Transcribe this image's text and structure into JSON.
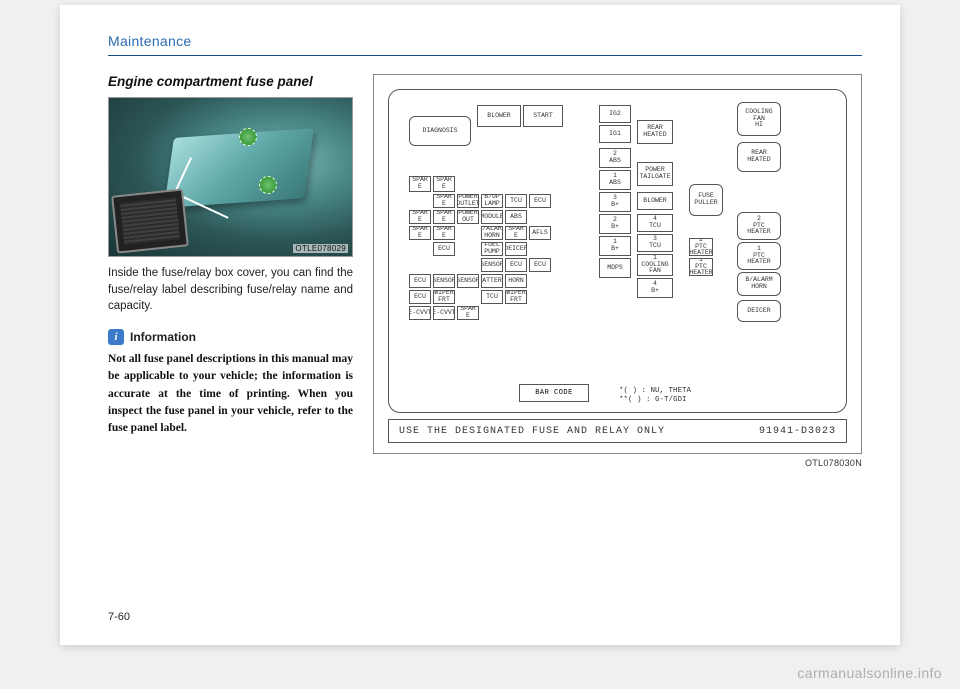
{
  "header": {
    "section": "Maintenance"
  },
  "article": {
    "title": "Engine compartment fuse panel",
    "photo_code": "OTLE078029",
    "body": "Inside the fuse/relay box cover, you can find the fuse/relay label describing fuse/relay name and capacity.",
    "info_label": "Information",
    "info_text": "Not all fuse panel descriptions in this manual may be applicable to your vehicle; the information is accurate at the time of printing. When you inspect the fuse panel in your vehicle, refer to the fuse panel label."
  },
  "diagram": {
    "code": "OTL078030N",
    "bottom_left": "USE THE DESIGNATED FUSE AND RELAY ONLY",
    "bottom_right": "91941-D3023",
    "barcode": "BAR CODE",
    "footnote1": "*( ) : NU, THETA",
    "footnote2": "**( ) : G-T/GDI",
    "cells": [
      {
        "l": 20,
        "t": 26,
        "w": 62,
        "h": 30,
        "r": 1,
        "txt": "DIAGNOSIS"
      },
      {
        "l": 88,
        "t": 15,
        "w": 44,
        "h": 22,
        "r": 0,
        "txt": "BLOWER"
      },
      {
        "l": 134,
        "t": 15,
        "w": 40,
        "h": 22,
        "r": 0,
        "txt": "START"
      },
      {
        "l": 20,
        "t": 86,
        "w": 22,
        "h": 16,
        "r": 0,
        "txt": "SPAR\nE"
      },
      {
        "l": 44,
        "t": 86,
        "w": 22,
        "h": 16,
        "r": 0,
        "txt": "SPAR\nE"
      },
      {
        "l": 44,
        "t": 104,
        "w": 22,
        "h": 14,
        "r": 0,
        "txt": "SPAR\nE"
      },
      {
        "l": 20,
        "t": 120,
        "w": 22,
        "h": 14,
        "r": 0,
        "txt": "SPAR\nE"
      },
      {
        "l": 44,
        "t": 120,
        "w": 22,
        "h": 14,
        "r": 0,
        "txt": "SPAR\nE"
      },
      {
        "l": 20,
        "t": 136,
        "w": 22,
        "h": 14,
        "r": 0,
        "txt": "SPAR\nE"
      },
      {
        "l": 44,
        "t": 136,
        "w": 22,
        "h": 14,
        "r": 0,
        "txt": "SPAR\nE"
      },
      {
        "l": 68,
        "t": 104,
        "w": 22,
        "h": 14,
        "r": 0,
        "txt": "POWER\nOUTLET"
      },
      {
        "l": 68,
        "t": 120,
        "w": 22,
        "h": 14,
        "r": 0,
        "txt": "POWER\nOUT"
      },
      {
        "l": 92,
        "t": 104,
        "w": 22,
        "h": 14,
        "r": 0,
        "txt": "B/UP\nLAMP"
      },
      {
        "l": 92,
        "t": 120,
        "w": 22,
        "h": 14,
        "r": 0,
        "txt": "MODULE"
      },
      {
        "l": 92,
        "t": 136,
        "w": 22,
        "h": 14,
        "r": 0,
        "txt": "B/ALARM\nHORN"
      },
      {
        "l": 116,
        "t": 104,
        "w": 22,
        "h": 14,
        "r": 0,
        "txt": "TCU"
      },
      {
        "l": 116,
        "t": 120,
        "w": 22,
        "h": 14,
        "r": 0,
        "txt": "ABS"
      },
      {
        "l": 116,
        "t": 136,
        "w": 22,
        "h": 14,
        "r": 0,
        "txt": "SPAR\nE"
      },
      {
        "l": 140,
        "t": 104,
        "w": 22,
        "h": 14,
        "r": 0,
        "txt": "ECU"
      },
      {
        "l": 140,
        "t": 136,
        "w": 22,
        "h": 14,
        "r": 0,
        "txt": "AFLS"
      },
      {
        "l": 44,
        "t": 152,
        "w": 22,
        "h": 14,
        "r": 0,
        "txt": "ECU"
      },
      {
        "l": 92,
        "t": 152,
        "w": 22,
        "h": 14,
        "r": 0,
        "txt": "FUEL\nPUMP"
      },
      {
        "l": 116,
        "t": 152,
        "w": 22,
        "h": 14,
        "r": 0,
        "txt": "DEICER"
      },
      {
        "l": 92,
        "t": 168,
        "w": 22,
        "h": 14,
        "r": 0,
        "txt": "SENSOR"
      },
      {
        "l": 116,
        "t": 168,
        "w": 22,
        "h": 14,
        "r": 0,
        "txt": "ECU"
      },
      {
        "l": 140,
        "t": 168,
        "w": 22,
        "h": 14,
        "r": 0,
        "txt": "ECU"
      },
      {
        "l": 20,
        "t": 184,
        "w": 22,
        "h": 14,
        "r": 0,
        "txt": "ECU"
      },
      {
        "l": 44,
        "t": 184,
        "w": 22,
        "h": 14,
        "r": 0,
        "txt": "SENSOR"
      },
      {
        "l": 68,
        "t": 184,
        "w": 22,
        "h": 14,
        "r": 0,
        "txt": "SENSOR"
      },
      {
        "l": 92,
        "t": 184,
        "w": 22,
        "h": 14,
        "r": 0,
        "txt": "BATTERY"
      },
      {
        "l": 116,
        "t": 184,
        "w": 22,
        "h": 14,
        "r": 0,
        "txt": "HORN"
      },
      {
        "l": 20,
        "t": 200,
        "w": 22,
        "h": 14,
        "r": 0,
        "txt": "ECU"
      },
      {
        "l": 44,
        "t": 200,
        "w": 22,
        "h": 14,
        "r": 0,
        "txt": "WIPER\nFRT"
      },
      {
        "l": 92,
        "t": 200,
        "w": 22,
        "h": 14,
        "r": 0,
        "txt": "TCU"
      },
      {
        "l": 116,
        "t": 200,
        "w": 22,
        "h": 14,
        "r": 0,
        "txt": "WIPER\nFRT"
      },
      {
        "l": 20,
        "t": 216,
        "w": 22,
        "h": 14,
        "r": 0,
        "txt": "E-CVVT"
      },
      {
        "l": 44,
        "t": 216,
        "w": 22,
        "h": 14,
        "r": 0,
        "txt": "E-CVVT"
      },
      {
        "l": 68,
        "t": 216,
        "w": 22,
        "h": 14,
        "r": 0,
        "txt": "SPAR\nE"
      },
      {
        "l": 210,
        "t": 15,
        "w": 32,
        "h": 18,
        "r": 0,
        "txt": "IG2"
      },
      {
        "l": 210,
        "t": 35,
        "w": 32,
        "h": 18,
        "r": 0,
        "txt": "IG1"
      },
      {
        "l": 210,
        "t": 58,
        "w": 32,
        "h": 20,
        "r": 0,
        "txt": "2\nABS"
      },
      {
        "l": 210,
        "t": 80,
        "w": 32,
        "h": 20,
        "r": 0,
        "txt": "1\nABS"
      },
      {
        "l": 210,
        "t": 102,
        "w": 32,
        "h": 20,
        "r": 0,
        "txt": "3\nB+"
      },
      {
        "l": 210,
        "t": 124,
        "w": 32,
        "h": 20,
        "r": 0,
        "txt": "2\nB+"
      },
      {
        "l": 210,
        "t": 146,
        "w": 32,
        "h": 20,
        "r": 0,
        "txt": "1\nB+"
      },
      {
        "l": 210,
        "t": 168,
        "w": 32,
        "h": 20,
        "r": 0,
        "txt": "MDPS"
      },
      {
        "l": 248,
        "t": 30,
        "w": 36,
        "h": 24,
        "r": 0,
        "txt": "REAR\nHEATED"
      },
      {
        "l": 248,
        "t": 72,
        "w": 36,
        "h": 24,
        "r": 0,
        "txt": "POWER\nTAILGATE"
      },
      {
        "l": 248,
        "t": 102,
        "w": 36,
        "h": 18,
        "r": 0,
        "txt": "BLOWER"
      },
      {
        "l": 248,
        "t": 124,
        "w": 36,
        "h": 18,
        "r": 0,
        "txt": "4\nTCU"
      },
      {
        "l": 248,
        "t": 144,
        "w": 36,
        "h": 18,
        "r": 0,
        "txt": "3\nTCU"
      },
      {
        "l": 248,
        "t": 164,
        "w": 36,
        "h": 22,
        "r": 0,
        "txt": "1\nCOOLING\nFAN"
      },
      {
        "l": 248,
        "t": 188,
        "w": 36,
        "h": 20,
        "r": 0,
        "txt": "4\nB+"
      },
      {
        "l": 300,
        "t": 94,
        "w": 34,
        "h": 32,
        "r": 1,
        "txt": "FUSE\nPULLER"
      },
      {
        "l": 300,
        "t": 148,
        "w": 24,
        "h": 18,
        "r": 0,
        "txt": "2\nPTC\nHEATER"
      },
      {
        "l": 300,
        "t": 168,
        "w": 24,
        "h": 18,
        "r": 0,
        "txt": "1\nPTC\nHEATER"
      },
      {
        "l": 348,
        "t": 12,
        "w": 44,
        "h": 34,
        "r": 1,
        "txt": "COOLING\nFAN\nHI"
      },
      {
        "l": 348,
        "t": 52,
        "w": 44,
        "h": 30,
        "r": 1,
        "txt": "REAR\nHEATED"
      },
      {
        "l": 348,
        "t": 122,
        "w": 44,
        "h": 28,
        "r": 1,
        "txt": "2\nPTC\nHEATER"
      },
      {
        "l": 348,
        "t": 152,
        "w": 44,
        "h": 28,
        "r": 1,
        "txt": "1\nPTC\nHEATER"
      },
      {
        "l": 348,
        "t": 182,
        "w": 44,
        "h": 24,
        "r": 1,
        "txt": "B/ALARM\nHORN"
      },
      {
        "l": 348,
        "t": 210,
        "w": 44,
        "h": 22,
        "r": 1,
        "txt": "DEICER"
      }
    ]
  },
  "page_number": "7-60",
  "watermark": "carmanualsonline.info"
}
